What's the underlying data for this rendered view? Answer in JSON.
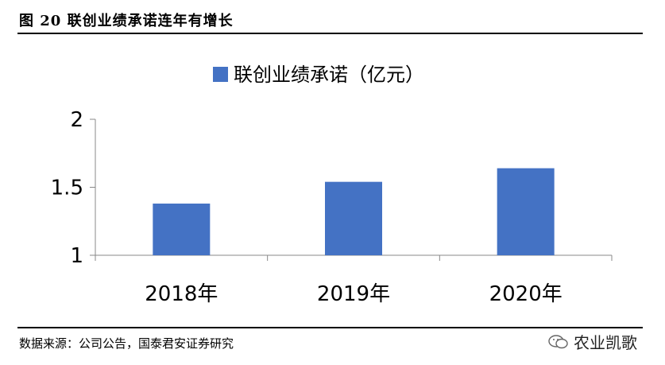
{
  "figure_title": "图 20 联创业绩承诺连年有增长",
  "source_note": "数据来源：公司公告，国泰君安证券研究",
  "watermark_text": "农业凯歌",
  "watermark_icon": "wechat-icon",
  "bar_color": "#4472C4",
  "chart_data": {
    "type": "bar",
    "categories": [
      "2018年",
      "2019年",
      "2020年"
    ],
    "series": [
      {
        "name": "联创业绩承诺（亿元）",
        "values": [
          1.38,
          1.54,
          1.64
        ]
      }
    ],
    "ylim": [
      1,
      2
    ],
    "yticks": [
      "1",
      "1.5",
      "2"
    ],
    "legend_position": "top",
    "grid": false
  }
}
